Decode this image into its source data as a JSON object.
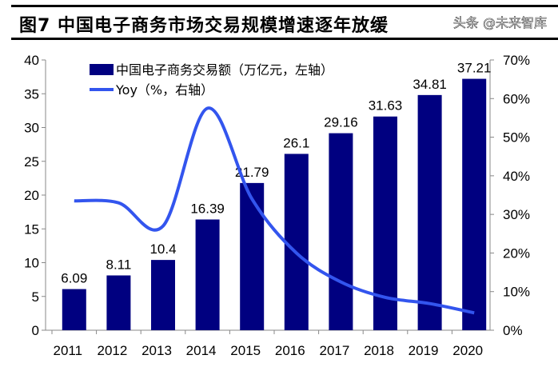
{
  "title": "图7  中国电子商务市场交易规模增速逐年放缓",
  "watermark": "头条 @未来智库",
  "chart_data": {
    "type": "bar+line",
    "categories": [
      "2011",
      "2012",
      "2013",
      "2014",
      "2015",
      "2016",
      "2017",
      "2018",
      "2019",
      "2020"
    ],
    "series": [
      {
        "name": "中国电子商务交易额（万亿元，左轴）",
        "type": "bar",
        "axis": "left",
        "color": "#000080",
        "values": [
          6.09,
          8.11,
          10.4,
          16.39,
          21.79,
          26.1,
          29.16,
          31.63,
          34.81,
          37.21
        ],
        "labels": [
          "6.09",
          "8.11",
          "10.4",
          "16.39",
          "21.79",
          "26.1",
          "29.16",
          "31.63",
          "34.81",
          "37.21"
        ]
      },
      {
        "name": "Yoy（%，右轴）",
        "type": "line",
        "axis": "right",
        "color": "#3355ee",
        "values": [
          33.5,
          33,
          27,
          57.5,
          34,
          20,
          12.5,
          8.5,
          6.9,
          4.5
        ]
      }
    ],
    "yleft": {
      "lim": [
        0,
        40
      ],
      "ticks": [
        "0",
        "5",
        "10",
        "15",
        "20",
        "25",
        "30",
        "35",
        "40"
      ]
    },
    "yright": {
      "lim": [
        0,
        70
      ],
      "ticks": [
        "0%",
        "10%",
        "20%",
        "30%",
        "40%",
        "50%",
        "60%",
        "70%"
      ]
    },
    "legend": "top-left",
    "grid": false
  }
}
